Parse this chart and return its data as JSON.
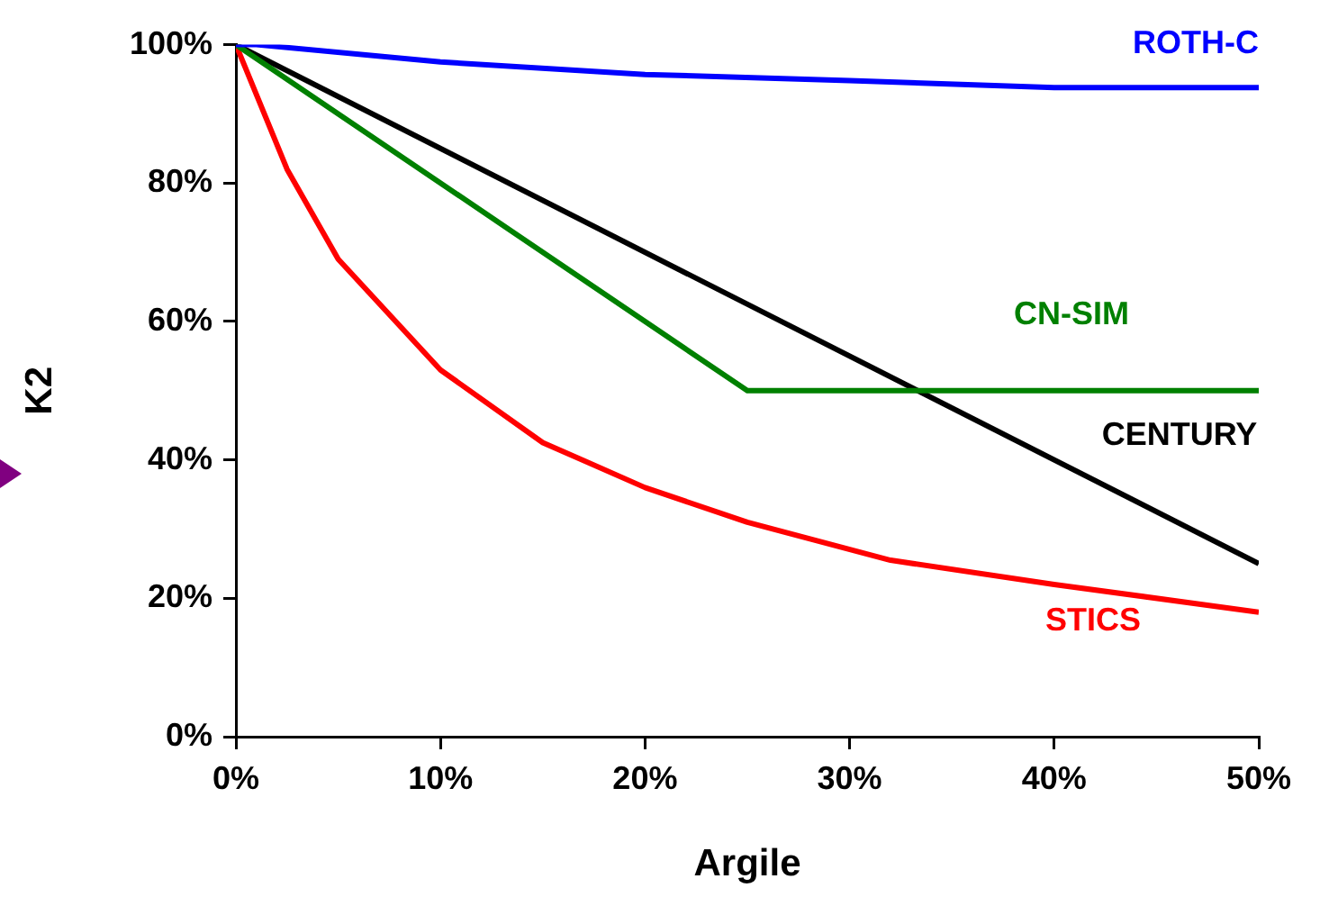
{
  "chart_data": {
    "type": "line",
    "xlabel": "Argile",
    "ylabel": "K2",
    "xlim": [
      0,
      50
    ],
    "ylim": [
      0,
      100
    ],
    "xticks": [
      {
        "value": 0,
        "label": "0%"
      },
      {
        "value": 10,
        "label": "10%"
      },
      {
        "value": 20,
        "label": "20%"
      },
      {
        "value": 30,
        "label": "30%"
      },
      {
        "value": 40,
        "label": "40%"
      },
      {
        "value": 50,
        "label": "50%"
      }
    ],
    "yticks": [
      {
        "value": 0,
        "label": "0%"
      },
      {
        "value": 20,
        "label": "20%"
      },
      {
        "value": 40,
        "label": "40%"
      },
      {
        "value": 60,
        "label": "60%"
      },
      {
        "value": 80,
        "label": "80%"
      },
      {
        "value": 100,
        "label": "100%"
      }
    ],
    "grid": false,
    "legend": false,
    "marker": "none",
    "line_style": "solid",
    "series": [
      {
        "name": "ROTH-C",
        "color": "#0000ff",
        "x": [
          0,
          1,
          10,
          20,
          30,
          40,
          50
        ],
        "values": [
          100,
          100,
          97.5,
          95.7,
          94.8,
          93.8,
          93.8
        ]
      },
      {
        "name": "CN-SIM",
        "color": "#008000",
        "x": [
          0,
          25,
          50
        ],
        "values": [
          100,
          50,
          50
        ]
      },
      {
        "name": "CENTURY",
        "color": "#000000",
        "x": [
          0,
          50
        ],
        "values": [
          100,
          25
        ]
      },
      {
        "name": "STICS",
        "color": "#ff0000",
        "x": [
          0,
          2.5,
          5,
          10,
          15,
          20,
          25,
          32,
          40,
          50
        ],
        "values": [
          100,
          82,
          69,
          53,
          42.5,
          36,
          31,
          25.5,
          22,
          18
        ]
      }
    ]
  }
}
